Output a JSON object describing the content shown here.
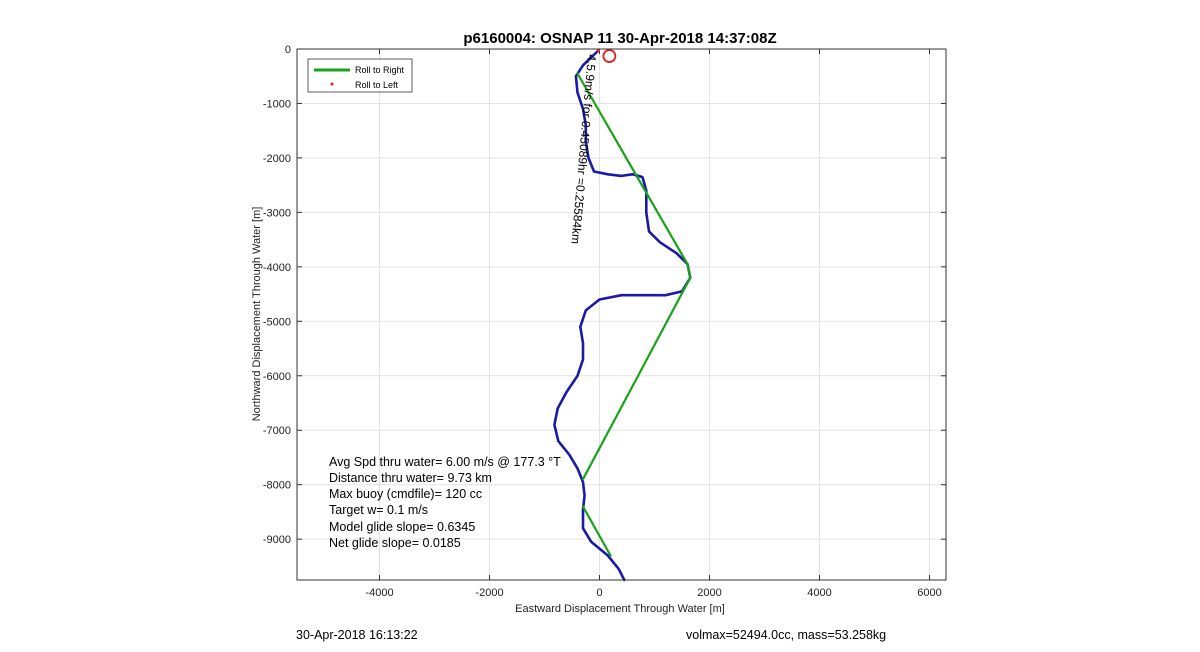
{
  "chart_data": {
    "type": "line",
    "title": "p6160004: OSNAP 11 30-Apr-2018 14:37:08Z",
    "xlabel": "Eastward Displacement Through Water [m]",
    "ylabel": "Northward Displacement Through Water [m]",
    "xlim": [
      -5500,
      6300
    ],
    "ylim": [
      -9750,
      0
    ],
    "xticks": [
      -4000,
      -2000,
      0,
      2000,
      4000,
      6000
    ],
    "yticks": [
      0,
      -1000,
      -2000,
      -3000,
      -4000,
      -5000,
      -6000,
      -7000,
      -8000,
      -9000
    ],
    "grid": true,
    "legend": {
      "position": "top-left",
      "entries": [
        {
          "label": "Roll to Right",
          "color": "#1aa31a",
          "marker": "line"
        },
        {
          "label": "Roll to Left",
          "color": "#dd2222",
          "marker": "dot"
        }
      ]
    },
    "series": [
      {
        "color": "#1a1aa8",
        "points": [
          [
            450,
            -9750
          ],
          [
            350,
            -9550
          ],
          [
            150,
            -9300
          ],
          [
            -150,
            -9050
          ],
          [
            -300,
            -8800
          ],
          [
            -300,
            -8450
          ],
          [
            -270,
            -8200
          ],
          [
            -300,
            -7950
          ],
          [
            -400,
            -7700
          ],
          [
            -550,
            -7450
          ],
          [
            -750,
            -7200
          ],
          [
            -820,
            -6900
          ],
          [
            -760,
            -6600
          ],
          [
            -600,
            -6300
          ],
          [
            -400,
            -6000
          ],
          [
            -300,
            -5700
          ],
          [
            -300,
            -5400
          ],
          [
            -350,
            -5100
          ],
          [
            -250,
            -4800
          ],
          [
            0,
            -4600
          ],
          [
            400,
            -4520
          ],
          [
            800,
            -4520
          ],
          [
            1200,
            -4520
          ],
          [
            1500,
            -4450
          ],
          [
            1650,
            -4200
          ],
          [
            1600,
            -3950
          ],
          [
            1400,
            -3750
          ],
          [
            1100,
            -3550
          ],
          [
            900,
            -3350
          ],
          [
            850,
            -3000
          ],
          [
            850,
            -2600
          ],
          [
            780,
            -2350
          ],
          [
            600,
            -2300
          ],
          [
            400,
            -2330
          ],
          [
            150,
            -2300
          ],
          [
            -100,
            -2250
          ],
          [
            -200,
            -2000
          ],
          [
            -250,
            -1700
          ],
          [
            -250,
            -1400
          ],
          [
            -300,
            -1100
          ],
          [
            -400,
            -800
          ],
          [
            -430,
            -500
          ],
          [
            -300,
            -300
          ],
          [
            -150,
            -150
          ],
          [
            -20,
            -30
          ]
        ]
      },
      {
        "color": "#1aa31a",
        "points": [
          [
            -400,
            -450
          ],
          [
            1600,
            -3950
          ],
          [
            1650,
            -4200
          ],
          [
            -300,
            -7900
          ]
        ]
      },
      {
        "color": "#1aa31a",
        "points": [
          [
            -300,
            -8400
          ],
          [
            200,
            -9300
          ]
        ]
      }
    ],
    "markers": [
      {
        "type": "circle",
        "x": 180,
        "y": -130,
        "color": "#dd2222"
      },
      {
        "type": "dot",
        "x": -20,
        "y": -30,
        "color": "#dd2222"
      }
    ],
    "annotations": {
      "segment_label": "4.5.9m/s for 0.45089hr =0.25584km",
      "stats": [
        "Avg Spd thru water=  6.00 m/s @ 177.3 °T",
        "Distance thru water=  9.73 km",
        "Max buoy (cmdfile)= 120 cc",
        "Target w= 0.1 m/s",
        "Model glide slope= 0.6345",
        "Net glide slope= 0.0185"
      ]
    }
  },
  "footer": {
    "timestamp": "30-Apr-2018 16:13:22",
    "vol_mass": "volmax=52494.0cc, mass=53.258kg"
  }
}
